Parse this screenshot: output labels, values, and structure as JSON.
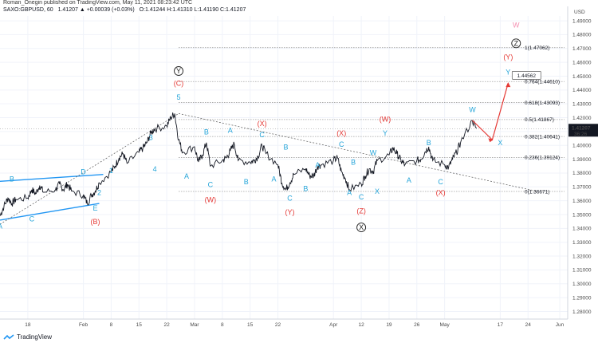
{
  "header": {
    "author_line": "Roman_Onegin published on TradingView.com, May 11, 2021 08:23:42 UTC",
    "symbol": "SAXO:GBPUSD, 60",
    "change": "1.41207 ▲ +0.00039 (+0.03%)",
    "ohlc": "O:1.41244 H:1.41310 L:1.41190 C:1.41207"
  },
  "footer": {
    "brand": "TradingView"
  },
  "colors": {
    "bg": "#ffffff",
    "price": "#131722",
    "cyan": "#26a5d9",
    "red": "#e53935",
    "line_blue": "#2196f3",
    "grid": "#f0f3fa",
    "fib": "#9e9e9e"
  },
  "icons": {
    "logo": "tradingview-logo-icon"
  },
  "chart_data": {
    "type": "line",
    "currency": "USD",
    "ylim": [
      1.2745,
      1.4935
    ],
    "y_ticks": [
      1.28,
      1.29,
      1.3,
      1.31,
      1.32,
      1.33,
      1.34,
      1.35,
      1.36,
      1.37,
      1.38,
      1.39,
      1.4,
      1.41,
      1.42,
      1.43,
      1.44,
      1.45,
      1.46,
      1.47,
      1.48,
      1.49
    ],
    "x_ticks": [
      "18",
      "Feb",
      "8",
      "15",
      "22",
      "Mar",
      "8",
      "15",
      "22",
      "Apr",
      "12",
      "19",
      "26",
      "May",
      "17",
      "24",
      "Jun"
    ],
    "x_tick_dates": [
      "2021-01-18",
      "2021-02-01",
      "2021-02-08",
      "2021-02-15",
      "2021-02-22",
      "2021-03-01",
      "2021-03-08",
      "2021-03-15",
      "2021-03-22",
      "2021-04-05",
      "2021-04-12",
      "2021-04-19",
      "2021-04-26",
      "2021-05-03",
      "2021-05-17",
      "2021-05-24",
      "2021-06-01"
    ],
    "x_range": [
      "2021-01-11",
      "2021-06-03"
    ],
    "last_price": "1.41207",
    "countdown": "36:26",
    "series": [
      {
        "x": [
          "2021-01-11",
          "2021-01-12",
          "2021-01-13",
          "2021-01-14",
          "2021-01-15",
          "2021-01-18",
          "2021-01-19",
          "2021-01-20",
          "2021-01-21",
          "2021-01-22",
          "2021-01-25",
          "2021-01-26",
          "2021-01-27",
          "2021-01-28",
          "2021-01-29",
          "2021-02-01",
          "2021-02-02",
          "2021-02-03",
          "2021-02-04",
          "2021-02-05",
          "2021-02-08",
          "2021-02-09",
          "2021-02-10",
          "2021-02-11",
          "2021-02-12",
          "2021-02-15",
          "2021-02-16",
          "2021-02-17",
          "2021-02-18",
          "2021-02-19",
          "2021-02-22",
          "2021-02-23",
          "2021-02-24",
          "2021-02-25",
          "2021-02-26",
          "2021-03-01",
          "2021-03-02",
          "2021-03-03",
          "2021-03-04",
          "2021-03-05",
          "2021-03-08",
          "2021-03-09",
          "2021-03-10",
          "2021-03-11",
          "2021-03-12",
          "2021-03-15",
          "2021-03-16",
          "2021-03-17",
          "2021-03-18",
          "2021-03-19",
          "2021-03-22",
          "2021-03-23",
          "2021-03-24",
          "2021-03-25",
          "2021-03-26",
          "2021-03-29",
          "2021-03-30",
          "2021-03-31",
          "2021-04-01",
          "2021-04-02",
          "2021-04-05",
          "2021-04-06",
          "2021-04-07",
          "2021-04-08",
          "2021-04-09",
          "2021-04-12",
          "2021-04-13",
          "2021-04-14",
          "2021-04-15",
          "2021-04-16",
          "2021-04-19",
          "2021-04-20",
          "2021-04-21",
          "2021-04-22",
          "2021-04-23",
          "2021-04-26",
          "2021-04-27",
          "2021-04-28",
          "2021-04-29",
          "2021-04-30",
          "2021-05-03",
          "2021-05-04",
          "2021-05-05",
          "2021-05-06",
          "2021-05-07",
          "2021-05-10",
          "2021-05-11"
        ],
        "values": [
          1.349,
          1.356,
          1.362,
          1.358,
          1.361,
          1.362,
          1.368,
          1.365,
          1.371,
          1.366,
          1.368,
          1.372,
          1.368,
          1.372,
          1.367,
          1.364,
          1.358,
          1.364,
          1.367,
          1.373,
          1.381,
          1.385,
          1.391,
          1.394,
          1.387,
          1.395,
          1.398,
          1.402,
          1.409,
          1.412,
          1.414,
          1.42,
          1.423,
          1.404,
          1.395,
          1.399,
          1.388,
          1.393,
          1.402,
          1.385,
          1.389,
          1.391,
          1.396,
          1.401,
          1.389,
          1.388,
          1.389,
          1.392,
          1.4,
          1.394,
          1.386,
          1.373,
          1.368,
          1.373,
          1.379,
          1.383,
          1.378,
          1.378,
          1.385,
          1.386,
          1.389,
          1.391,
          1.381,
          1.376,
          1.368,
          1.372,
          1.378,
          1.383,
          1.381,
          1.389,
          1.393,
          1.398,
          1.394,
          1.389,
          1.386,
          1.389,
          1.39,
          1.395,
          1.399,
          1.389,
          1.386,
          1.384,
          1.39,
          1.395,
          1.402,
          1.418,
          1.412
        ]
      }
    ],
    "fib_levels": [
      {
        "label": "0(1.36671)",
        "value": 1.36671
      },
      {
        "label": "0.236(1.39124)",
        "value": 1.39124
      },
      {
        "label": "0.382(1.40641)",
        "value": 1.40641
      },
      {
        "label": "0.5(1.41867)",
        "value": 1.41867
      },
      {
        "label": "0.618(1.43093)",
        "value": 1.43093
      },
      {
        "label": "0.764(1.44610)",
        "value": 1.4461
      },
      {
        "label": "1(1.47062)",
        "value": 1.47062
      }
    ],
    "target_label": "1.44562",
    "wave_labels": [
      {
        "text": "A",
        "color": "cyan",
        "date": "2021-01-11",
        "y": 1.34
      },
      {
        "text": "B",
        "color": "cyan",
        "date": "2021-01-14",
        "y": 1.374
      },
      {
        "text": "C",
        "color": "cyan",
        "date": "2021-01-19",
        "y": 1.345
      },
      {
        "text": "D",
        "color": "cyan",
        "date": "2021-02-01",
        "y": 1.379
      },
      {
        "text": "E",
        "color": "cyan",
        "date": "2021-02-04",
        "y": 1.353
      },
      {
        "text": "(B)",
        "color": "red",
        "date": "2021-02-04",
        "y": 1.343
      },
      {
        "text": "1",
        "color": "cyan",
        "date": "2021-02-08",
        "y": 1.38
      },
      {
        "text": "2",
        "color": "cyan",
        "date": "2021-02-05",
        "y": 1.364
      },
      {
        "text": "3",
        "color": "cyan",
        "date": "2021-02-18",
        "y": 1.404
      },
      {
        "text": "4",
        "color": "cyan",
        "date": "2021-02-19",
        "y": 1.381
      },
      {
        "text": "5",
        "color": "cyan",
        "date": "2021-02-25",
        "y": 1.433
      },
      {
        "text": "(C)",
        "color": "red",
        "date": "2021-02-25",
        "y": 1.443
      },
      {
        "text": "A",
        "color": "cyan",
        "date": "2021-02-27",
        "y": 1.376
      },
      {
        "text": "B",
        "color": "cyan",
        "date": "2021-03-04",
        "y": 1.408
      },
      {
        "text": "C",
        "color": "cyan",
        "date": "2021-03-05",
        "y": 1.37
      },
      {
        "text": "(W)",
        "color": "red",
        "date": "2021-03-05",
        "y": 1.359
      },
      {
        "text": "A",
        "color": "cyan",
        "date": "2021-03-10",
        "y": 1.409
      },
      {
        "text": "B",
        "color": "cyan",
        "date": "2021-03-14",
        "y": 1.372
      },
      {
        "text": "C",
        "color": "cyan",
        "date": "2021-03-18",
        "y": 1.406
      },
      {
        "text": "(X)",
        "color": "red",
        "date": "2021-03-18",
        "y": 1.414
      },
      {
        "text": "B",
        "color": "cyan",
        "date": "2021-03-24",
        "y": 1.397
      },
      {
        "text": "A",
        "color": "cyan",
        "date": "2021-03-21",
        "y": 1.374
      },
      {
        "text": "C",
        "color": "cyan",
        "date": "2021-03-25",
        "y": 1.36
      },
      {
        "text": "(Y)",
        "color": "red",
        "date": "2021-03-25",
        "y": 1.35
      },
      {
        "text": "B",
        "color": "cyan",
        "date": "2021-03-29",
        "y": 1.367
      },
      {
        "text": "A",
        "color": "cyan",
        "date": "2021-04-01",
        "y": 1.384
      },
      {
        "text": "C",
        "color": "cyan",
        "date": "2021-04-07",
        "y": 1.399
      },
      {
        "text": "(X)",
        "color": "red",
        "date": "2021-04-07",
        "y": 1.407
      },
      {
        "text": "A",
        "color": "cyan",
        "date": "2021-04-09",
        "y": 1.364
      },
      {
        "text": "B",
        "color": "cyan",
        "date": "2021-04-10",
        "y": 1.386
      },
      {
        "text": "C",
        "color": "cyan",
        "date": "2021-04-12",
        "y": 1.361
      },
      {
        "text": "(Z)",
        "color": "red",
        "date": "2021-04-12",
        "y": 1.351
      },
      {
        "text": "W",
        "color": "cyan",
        "date": "2021-04-15",
        "y": 1.393
      },
      {
        "text": "X",
        "color": "cyan",
        "date": "2021-04-16",
        "y": 1.365
      },
      {
        "text": "Y",
        "color": "cyan",
        "date": "2021-04-18",
        "y": 1.407
      },
      {
        "text": "(W)",
        "color": "red",
        "date": "2021-04-18",
        "y": 1.417
      },
      {
        "text": "A",
        "color": "cyan",
        "date": "2021-04-24",
        "y": 1.373
      },
      {
        "text": "B",
        "color": "cyan",
        "date": "2021-04-29",
        "y": 1.4
      },
      {
        "text": "C",
        "color": "cyan",
        "date": "2021-05-02",
        "y": 1.372
      },
      {
        "text": "(X)",
        "color": "red",
        "date": "2021-05-02",
        "y": 1.364
      },
      {
        "text": "W",
        "color": "cyan",
        "date": "2021-05-10",
        "y": 1.424
      },
      {
        "text": "X",
        "color": "cyan",
        "date": "2021-05-17",
        "y": 1.4
      },
      {
        "text": "Y",
        "color": "cyan",
        "date": "2021-05-19",
        "y": 1.451
      },
      {
        "text": "(Y)",
        "color": "red",
        "date": "2021-05-19",
        "y": 1.462
      },
      {
        "text": "W",
        "color": "pink",
        "date": "2021-05-21",
        "y": 1.485
      }
    ],
    "circled_labels": [
      {
        "text": "Y",
        "date": "2021-02-25",
        "y": 1.452
      },
      {
        "text": "X",
        "date": "2021-04-12",
        "y": 1.339
      },
      {
        "text": "Z",
        "date": "2021-05-21",
        "y": 1.472
      }
    ],
    "trend_lines": [
      {
        "color": "line_blue",
        "from": [
          "2021-01-11",
          1.374
        ],
        "to": [
          "2021-02-06",
          1.379
        ]
      },
      {
        "color": "line_blue",
        "from": [
          "2021-01-11",
          1.346
        ],
        "to": [
          "2021-02-05",
          1.358
        ]
      },
      {
        "color": "dashed",
        "from": [
          "2021-01-11",
          1.343
        ],
        "to": [
          "2021-02-25",
          1.423
        ]
      },
      {
        "color": "dashed",
        "from": [
          "2021-02-25",
          1.423
        ],
        "to": [
          "2021-05-26",
          1.367
        ]
      }
    ],
    "projection": [
      [
        "2021-05-10",
        1.418
      ],
      [
        "2021-05-15",
        1.404
      ],
      [
        "2021-05-19",
        1.445
      ]
    ]
  }
}
